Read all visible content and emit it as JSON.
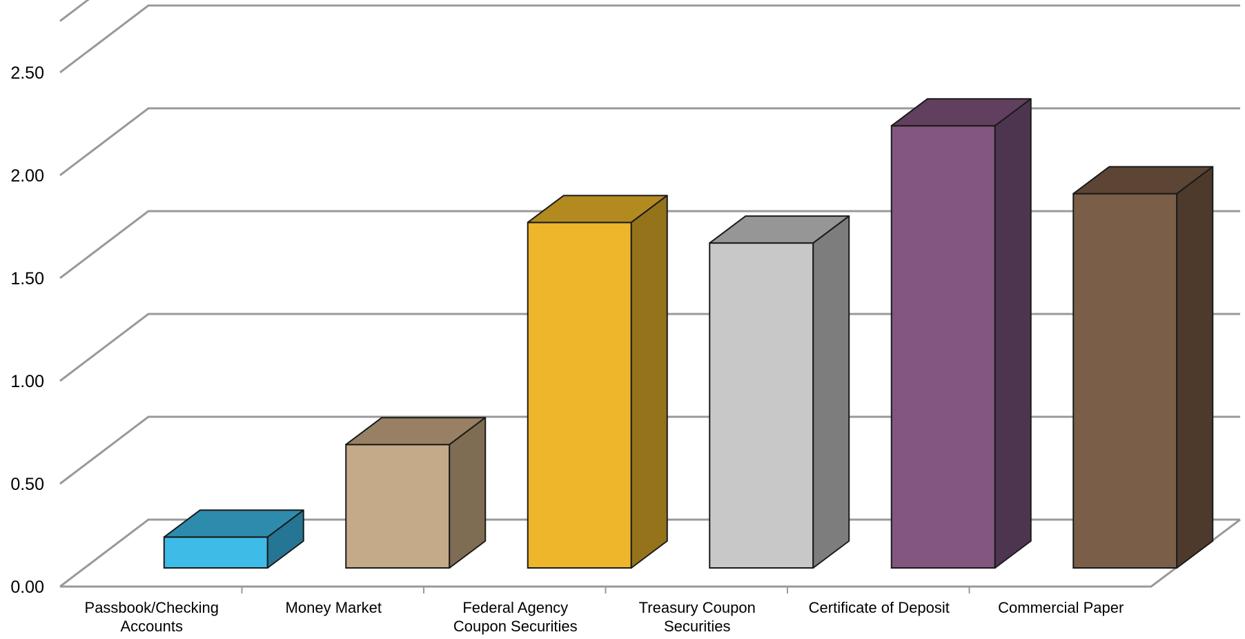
{
  "chart_data": {
    "type": "bar",
    "three_d": true,
    "title": "",
    "xlabel": "",
    "ylabel": "",
    "categories": [
      [
        "Passbook/Checking",
        "Accounts"
      ],
      [
        "Money Market"
      ],
      [
        "Federal Agency",
        "Coupon Securities"
      ],
      [
        "Treasury Coupon",
        "Securities"
      ],
      [
        "Certificate of Deposit"
      ],
      [
        "Commercial Paper"
      ]
    ],
    "values": [
      0.15,
      0.6,
      1.68,
      1.58,
      2.15,
      1.82
    ],
    "ylim": [
      0,
      2.75
    ],
    "yticks": [
      "0.00",
      "0.50",
      "1.00",
      "1.50",
      "2.00",
      "2.50"
    ],
    "ytick_values": [
      0,
      0.5,
      1.0,
      1.5,
      2.0,
      2.5
    ],
    "grid": true,
    "legend": "none",
    "colors": [
      {
        "front": "#3EBBE6",
        "top": "#2D8BAE",
        "side": "#257594"
      },
      {
        "front": "#C4AA88",
        "top": "#978064",
        "side": "#7E6C53"
      },
      {
        "front": "#EDB62B",
        "top": "#B28A20",
        "side": "#94731B"
      },
      {
        "front": "#C8C8C8",
        "top": "#969696",
        "side": "#7D7D7D"
      },
      {
        "front": "#82567F",
        "top": "#613F5E",
        "side": "#4E354F"
      },
      {
        "front": "#7A5E48",
        "top": "#5C4535",
        "side": "#4D3A2C"
      }
    ],
    "gridline_color": "#999999",
    "outline_color": "#1a1a1a"
  }
}
